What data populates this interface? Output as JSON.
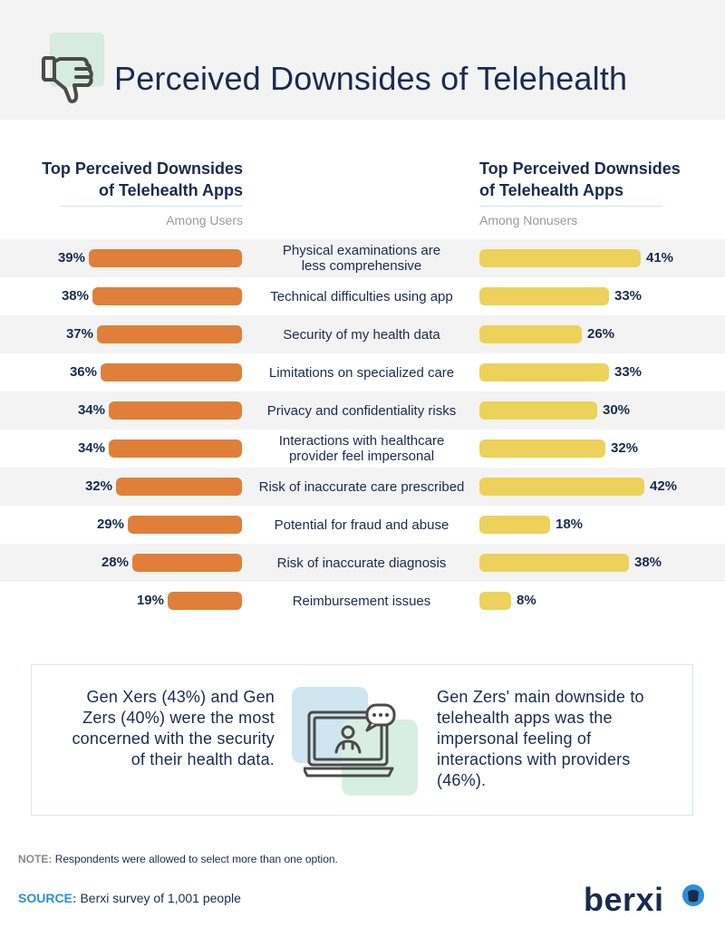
{
  "title": "Perceived Downsides of Telehealth",
  "users_heading": "Top Perceived Downsides of Telehealth Apps",
  "users_sub": "Among Users",
  "nonusers_heading": "Top Perceived Downsides of Telehealth Apps",
  "nonusers_sub": "Among Nonusers",
  "callout": {
    "left": "Gen Xers (43%) and Gen Zers (40%) were the most concerned with the security of their health data.",
    "right": "Gen Zers' main downside to telehealth apps was the impersonal feeling of interactions with providers (46%)."
  },
  "note_label": "NOTE:",
  "note_text": "Respondents were allowed to select more than one option.",
  "source_label": "SOURCE:",
  "source_text": "Berxi survey of 1,001 people",
  "brand": "berxi",
  "colors": {
    "users_bar": "#e07f3a",
    "nonusers_bar": "#ecd25b",
    "text": "#1a2b4c"
  },
  "chart_data": {
    "type": "bar",
    "title": "Perceived Downsides of Telehealth",
    "categories": [
      "Physical examinations are\nless comprehensive",
      "Technical difficulties using app",
      "Security of my health data",
      "Limitations on specialized care",
      "Privacy and confidentiality risks",
      "Interactions with healthcare\nprovider feel impersonal",
      "Risk of inaccurate care prescribed",
      "Potential for fraud and abuse",
      "Risk of inaccurate diagnosis",
      "Reimbursement issues"
    ],
    "series": [
      {
        "name": "Among Users",
        "values": [
          39,
          38,
          37,
          36,
          34,
          34,
          32,
          29,
          28,
          19
        ]
      },
      {
        "name": "Among Nonusers",
        "values": [
          41,
          33,
          26,
          33,
          30,
          32,
          42,
          18,
          38,
          8
        ]
      }
    ],
    "unit": "%",
    "xlim": [
      0,
      42
    ]
  }
}
